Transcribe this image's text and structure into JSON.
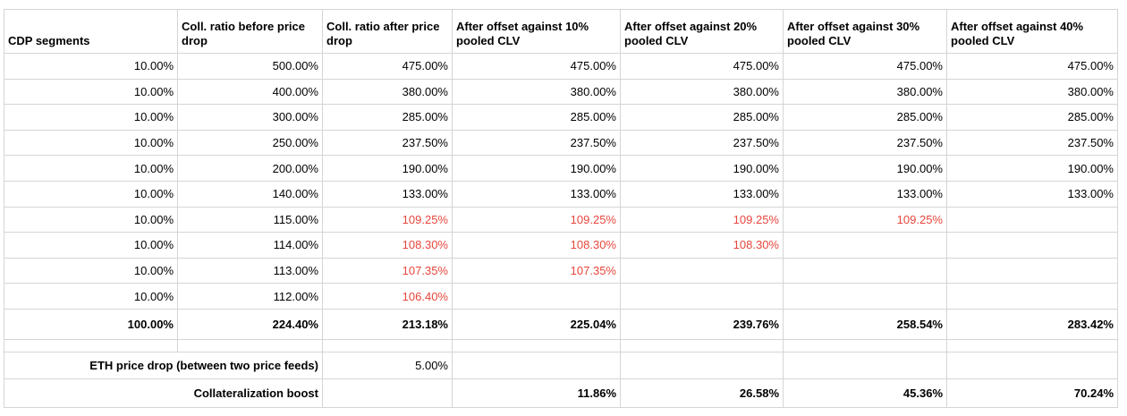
{
  "colors": {
    "red_value": "#e8463c",
    "grid": "#d5d5d5",
    "text": "#000000"
  },
  "table": {
    "columns": [
      "CDP segments",
      "Coll. ratio before price drop",
      "Coll. ratio after price drop",
      "After offset against 10% pooled CLV",
      "After offset against 20% pooled CLV",
      "After offset against 30% pooled CLV",
      "After offset against 40% pooled CLV"
    ],
    "rows": [
      {
        "cells": [
          "10.00%",
          "500.00%",
          "475.00%",
          "475.00%",
          "475.00%",
          "475.00%",
          "475.00%"
        ],
        "red_cols": []
      },
      {
        "cells": [
          "10.00%",
          "400.00%",
          "380.00%",
          "380.00%",
          "380.00%",
          "380.00%",
          "380.00%"
        ],
        "red_cols": []
      },
      {
        "cells": [
          "10.00%",
          "300.00%",
          "285.00%",
          "285.00%",
          "285.00%",
          "285.00%",
          "285.00%"
        ],
        "red_cols": []
      },
      {
        "cells": [
          "10.00%",
          "250.00%",
          "237.50%",
          "237.50%",
          "237.50%",
          "237.50%",
          "237.50%"
        ],
        "red_cols": []
      },
      {
        "cells": [
          "10.00%",
          "200.00%",
          "190.00%",
          "190.00%",
          "190.00%",
          "190.00%",
          "190.00%"
        ],
        "red_cols": []
      },
      {
        "cells": [
          "10.00%",
          "140.00%",
          "133.00%",
          "133.00%",
          "133.00%",
          "133.00%",
          "133.00%"
        ],
        "red_cols": []
      },
      {
        "cells": [
          "10.00%",
          "115.00%",
          "109.25%",
          "109.25%",
          "109.25%",
          "109.25%",
          ""
        ],
        "red_cols": [
          2,
          3,
          4,
          5
        ]
      },
      {
        "cells": [
          "10.00%",
          "114.00%",
          "108.30%",
          "108.30%",
          "108.30%",
          "",
          ""
        ],
        "red_cols": [
          2,
          3,
          4
        ]
      },
      {
        "cells": [
          "10.00%",
          "113.00%",
          "107.35%",
          "107.35%",
          "",
          "",
          ""
        ],
        "red_cols": [
          2,
          3
        ]
      },
      {
        "cells": [
          "10.00%",
          "112.00%",
          "106.40%",
          "",
          "",
          "",
          ""
        ],
        "red_cols": [
          2
        ]
      }
    ],
    "totals_row": [
      "100.00%",
      "224.40%",
      "213.18%",
      "225.04%",
      "239.76%",
      "258.54%",
      "283.42%"
    ],
    "eth_row": {
      "label": "ETH price drop (between two price feeds)",
      "value": "5.00%"
    },
    "boost_row": {
      "label": "Collateralization boost",
      "values": [
        "11.86%",
        "26.58%",
        "45.36%",
        "70.24%"
      ]
    }
  }
}
